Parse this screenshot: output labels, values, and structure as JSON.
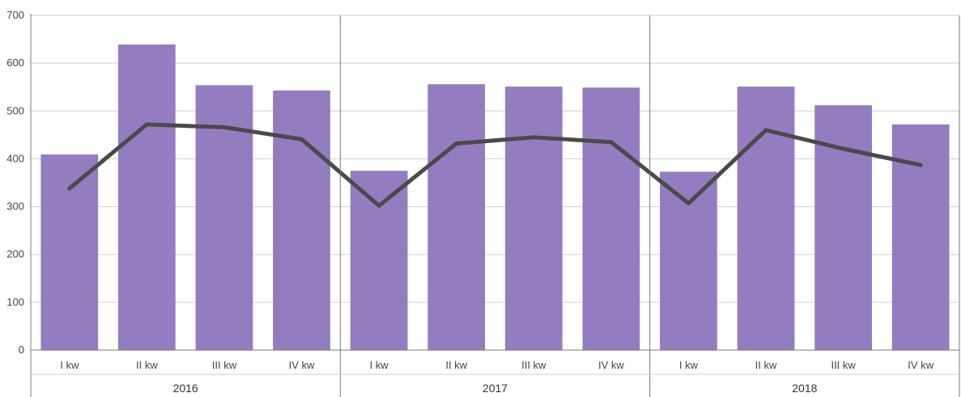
{
  "chart_data": {
    "type": "bar",
    "groups": [
      "2016",
      "2017",
      "2018"
    ],
    "categories": [
      "I kw",
      "II kw",
      "III kw",
      "IV kw",
      "I kw",
      "II kw",
      "III kw",
      "IV kw",
      "I kw",
      "II kw",
      "III kw",
      "IV kw"
    ],
    "series": [
      {
        "type": "bar",
        "color": "#947cc0",
        "values": [
          409,
          639,
          554,
          543,
          375,
          556,
          551,
          549,
          373,
          551,
          512,
          472
        ]
      },
      {
        "type": "line",
        "color": "#4a4a4a",
        "values": [
          338,
          472,
          466,
          441,
          302,
          432,
          445,
          435,
          307,
          460,
          421,
          387
        ]
      }
    ],
    "ylim": [
      0,
      700
    ],
    "yticks": [
      0,
      100,
      200,
      300,
      400,
      500,
      600,
      700
    ],
    "grid": true,
    "legend": "none"
  }
}
